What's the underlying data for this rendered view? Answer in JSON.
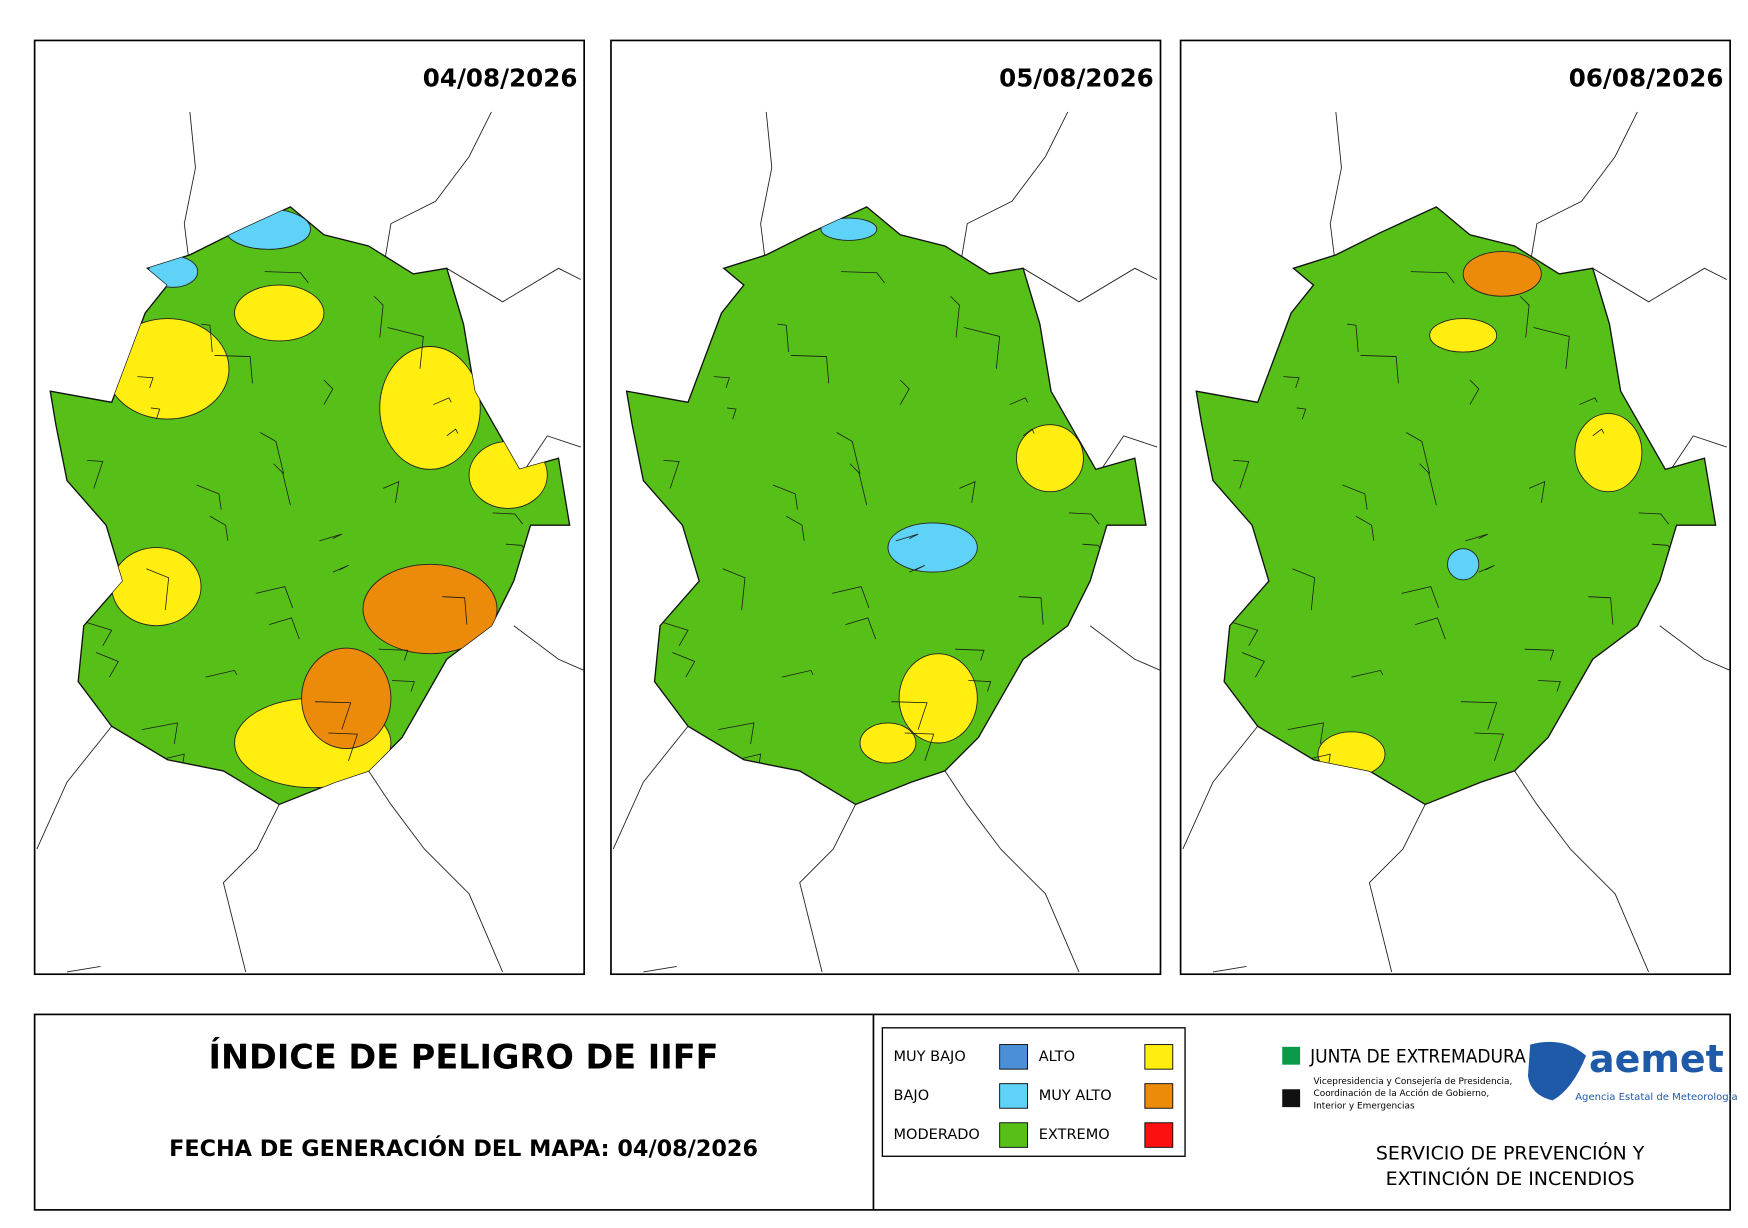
{
  "maps": [
    {
      "date": "04/08/2026"
    },
    {
      "date": "05/08/2026"
    },
    {
      "date": "06/08/2026"
    }
  ],
  "title": "ÍNDICE DE PELIGRO DE IIFF",
  "generation": "FECHA DE GENERACIÓN DEL MAPA: 04/08/2026",
  "legend": [
    {
      "label": "MUY BAJO",
      "color": "#4a8fd8"
    },
    {
      "label": "BAJO",
      "color": "#5fd3f7"
    },
    {
      "label": "MODERADO",
      "color": "#56c018"
    },
    {
      "label": "ALTO",
      "color": "#ffee10"
    },
    {
      "label": "MUY ALTO",
      "color": "#ec8a0a"
    },
    {
      "label": "EXTREMO",
      "color": "#ff1010"
    }
  ],
  "logos": {
    "junta": "JUNTA DE EXTREMADURA",
    "junta_sub": [
      "Vicepresidencia y Consejería de Presidencia,",
      "Coordinación de la Acción de Gobierno,",
      "Interior y Emergencias"
    ],
    "aemet": "aemet",
    "aemet_sub": "Agencia Estatal de Meteorología"
  },
  "service": [
    "SERVICIO DE PREVENCIÓN Y",
    "EXTINCIÓN DE INCENDIOS"
  ]
}
